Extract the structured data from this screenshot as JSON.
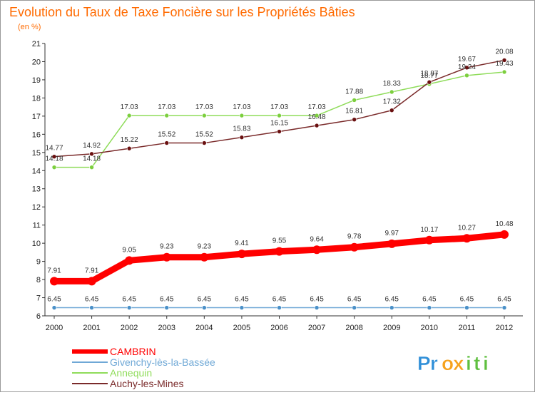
{
  "chart_data": {
    "type": "line",
    "title": "Evolution du Taux de Taxe Foncière sur les Propriétés Bâties",
    "subtitle": "(en %)",
    "xlabel": "",
    "ylabel": "",
    "x": [
      2000,
      2001,
      2002,
      2003,
      2004,
      2005,
      2006,
      2007,
      2008,
      2009,
      2010,
      2011,
      2012
    ],
    "x_labels": [
      "2000",
      "2001",
      "2002",
      "2003",
      "2004",
      "2005",
      "2006",
      "2007",
      "2008",
      "2009",
      "2010",
      "2011",
      "2012"
    ],
    "ylim": [
      6,
      21
    ],
    "y_ticks": [
      6,
      7,
      8,
      9,
      10,
      11,
      12,
      13,
      14,
      15,
      16,
      17,
      18,
      19,
      20,
      21
    ],
    "grid": false,
    "legend_position": "bottom-left",
    "series": [
      {
        "name": "CAMBRIN",
        "color": "#ff0000",
        "values": [
          7.91,
          7.91,
          9.05,
          9.23,
          9.23,
          9.41,
          9.55,
          9.64,
          9.78,
          9.97,
          10.17,
          10.27,
          10.48
        ],
        "labels": [
          "7.91",
          "7.91",
          "9.05",
          "9.23",
          "9.23",
          "9.41",
          "9.55",
          "9.64",
          "9.78",
          "9.97",
          "10.17",
          "10.27",
          "10.48"
        ]
      },
      {
        "name": "Givenchy-lès-la-Bassée",
        "color": "#6fa8d6",
        "values": [
          6.45,
          6.45,
          6.45,
          6.45,
          6.45,
          6.45,
          6.45,
          6.45,
          6.45,
          6.45,
          6.45,
          6.45,
          6.45
        ],
        "labels": [
          "6.45",
          "6.45",
          "6.45",
          "6.45",
          "6.45",
          "6.45",
          "6.45",
          "6.45",
          "6.45",
          "6.45",
          "6.45",
          "6.45",
          "6.45"
        ]
      },
      {
        "name": "Annequin",
        "color": "#8fdc5a",
        "values": [
          14.18,
          14.18,
          17.03,
          17.03,
          17.03,
          17.03,
          17.03,
          17.03,
          17.88,
          18.33,
          18.77,
          19.24,
          19.43
        ],
        "labels": [
          "14.18",
          "14.18",
          "17.03",
          "17.03",
          "17.03",
          "17.03",
          "17.03",
          "17.03",
          "17.88",
          "18.33",
          "18.77",
          "19.24",
          "19.43"
        ]
      },
      {
        "name": "Auchy-les-Mines",
        "color": "#7a2a2a",
        "values": [
          14.77,
          14.92,
          15.22,
          15.52,
          15.52,
          15.83,
          16.15,
          16.48,
          16.81,
          17.32,
          18.87,
          19.67,
          20.08
        ],
        "labels": [
          "14.77",
          "14.92",
          "15.22",
          "15.52",
          "15.52",
          "15.83",
          "16.15",
          "16.48",
          "16.81",
          "17.32",
          "18.87",
          "19.67",
          "20.08"
        ]
      }
    ]
  },
  "logo": {
    "text": "Proxiti",
    "letters": [
      "P",
      "r",
      "o",
      "x",
      "i",
      "t",
      "i"
    ],
    "colors": [
      "#2f8fd8",
      "#2f8fd8",
      "#f6a21d",
      "#f6a21d",
      "#5fbf3f",
      "#5fbf3f",
      "#5fbf3f"
    ]
  }
}
